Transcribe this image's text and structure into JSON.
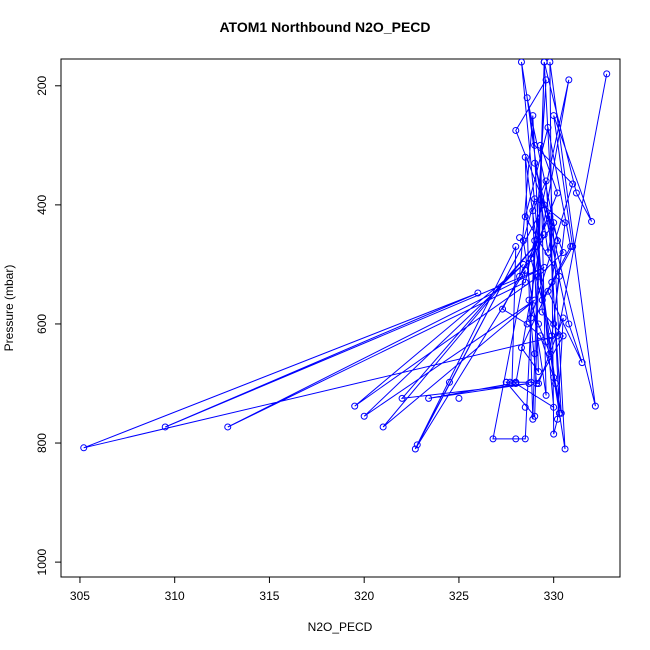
{
  "chart_data": {
    "type": "line",
    "title": "ATOM1 Northbound N2O_PECD",
    "xlabel": "N2O_PECD",
    "ylabel": "Pressure (mbar)",
    "xlim": [
      304,
      333.5
    ],
    "ylim": [
      1025,
      155
    ],
    "y_reversed": true,
    "xticks": [
      305,
      310,
      315,
      320,
      325,
      330
    ],
    "yticks": [
      200,
      400,
      600,
      800,
      1000
    ],
    "color": "#0000ff",
    "marker": "open-circle",
    "grid": false,
    "series": [
      {
        "name": "",
        "points": [
          [
            332.8,
            180
          ],
          [
            330.2,
            620
          ],
          [
            305.2,
            808
          ],
          [
            326.0,
            548
          ],
          [
            309.5,
            773
          ],
          [
            329.5,
            505
          ],
          [
            312.8,
            773
          ],
          [
            328.5,
            530
          ],
          [
            330.8,
            190
          ],
          [
            328.0,
            700
          ],
          [
            330.0,
            740
          ],
          [
            328.3,
            160
          ],
          [
            329.0,
            300
          ],
          [
            331.0,
            365
          ],
          [
            328.8,
            590
          ],
          [
            329.6,
            190
          ],
          [
            328.0,
            275
          ],
          [
            330.5,
            480
          ],
          [
            329.2,
            520
          ],
          [
            319.5,
            738
          ],
          [
            328.4,
            500
          ],
          [
            320.0,
            755
          ],
          [
            329.0,
            560
          ],
          [
            321.0,
            773
          ],
          [
            329.5,
            450
          ],
          [
            322.0,
            725
          ],
          [
            328.7,
            700
          ],
          [
            323.4,
            725
          ],
          [
            327.8,
            700
          ],
          [
            328.0,
            470
          ],
          [
            322.8,
            803
          ],
          [
            329.5,
            400
          ],
          [
            322.7,
            810
          ],
          [
            328.5,
            510
          ],
          [
            326.8,
            793
          ],
          [
            328.0,
            793
          ],
          [
            328.5,
            793
          ],
          [
            329.0,
            460
          ],
          [
            330.0,
            690
          ],
          [
            330.6,
            810
          ],
          [
            329.5,
            160
          ],
          [
            331.2,
            380
          ],
          [
            332.0,
            428
          ],
          [
            330.0,
            250
          ],
          [
            331.0,
            470
          ],
          [
            329.7,
            545
          ],
          [
            331.5,
            665
          ],
          [
            330.8,
            600
          ],
          [
            329.0,
            330
          ],
          [
            332.2,
            738
          ],
          [
            329.8,
            160
          ],
          [
            330.0,
            785
          ],
          [
            330.2,
            760
          ],
          [
            330.5,
            590
          ],
          [
            329.2,
            700
          ],
          [
            328.8,
            698
          ],
          [
            328.0,
            698
          ],
          [
            327.7,
            698
          ],
          [
            327.5,
            698
          ],
          [
            329.0,
            755
          ],
          [
            329.5,
            160
          ],
          [
            328.9,
            760
          ],
          [
            328.5,
            320
          ],
          [
            330.3,
            750
          ],
          [
            329.8,
            420
          ],
          [
            327.3,
            575
          ],
          [
            328.6,
            600
          ],
          [
            329.3,
            620
          ],
          [
            330.1,
            700
          ],
          [
            330.4,
            750
          ],
          [
            329.6,
            360
          ],
          [
            328.9,
            410
          ],
          [
            329.2,
            680
          ],
          [
            328.3,
            640
          ],
          [
            329.9,
            530
          ],
          [
            330.2,
            460
          ],
          [
            328.6,
            220
          ],
          [
            329.7,
            480
          ],
          [
            330.0,
            430
          ],
          [
            328.2,
            520
          ],
          [
            328.9,
            250
          ],
          [
            329.4,
            580
          ],
          [
            330.5,
            620
          ],
          [
            329.1,
            700
          ],
          [
            328.7,
            560
          ],
          [
            329.8,
            650
          ],
          [
            330.6,
            430
          ],
          [
            329.0,
            390
          ],
          [
            328.4,
            460
          ],
          [
            329.6,
            720
          ],
          [
            329.3,
            300
          ],
          [
            330.2,
            380
          ],
          [
            328.8,
            490
          ],
          [
            329.9,
            620
          ],
          [
            330.3,
            520
          ],
          [
            328.5,
            420
          ],
          [
            329.7,
            270
          ],
          [
            330.9,
            470
          ],
          [
            329.4,
            560
          ]
        ]
      }
    ],
    "extra_points": [
      [
        327.5,
        698
      ],
      [
        328.0,
        698
      ],
      [
        324.5,
        698
      ],
      [
        325.0,
        725
      ],
      [
        328.5,
        740
      ],
      [
        329.0,
        650
      ],
      [
        329.6,
        630
      ],
      [
        330.0,
        600
      ],
      [
        328.2,
        455
      ],
      [
        329.2,
        600
      ]
    ]
  }
}
